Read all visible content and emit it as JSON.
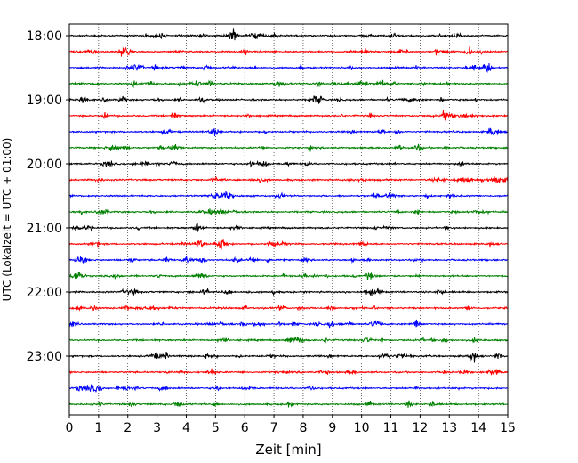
{
  "chart_data": {
    "type": "line",
    "title": "",
    "xlabel": "Zeit  [min]",
    "ylabel": "UTC (Lokalzeit = UTC + 01:00)",
    "xlim": [
      0,
      15
    ],
    "x_ticks": [
      "0",
      "1",
      "2",
      "3",
      "4",
      "5",
      "6",
      "7",
      "8",
      "9",
      "10",
      "11",
      "12",
      "13",
      "14",
      "15"
    ],
    "y_tick_labels": [
      "18:00",
      "19:00",
      "20:00",
      "21:00",
      "22:00",
      "23:00"
    ],
    "grid": "vertical dotted at each minute",
    "trace_interval_minutes": 15,
    "traces_start": "18:00",
    "traces_end": "23:45",
    "trace_count": 24,
    "trace_colors": [
      "#000000",
      "#ff0000",
      "#0000ff",
      "#008000"
    ],
    "description_rows": [
      "18:00",
      "18:15",
      "18:30",
      "18:45",
      "19:00",
      "19:15",
      "19:30",
      "19:45",
      "20:00",
      "20:15",
      "20:30",
      "20:45",
      "21:00",
      "21:15",
      "21:30",
      "21:45",
      "22:00",
      "22:15",
      "22:30",
      "22:45",
      "23:00",
      "23:15",
      "23:30",
      "23:45"
    ]
  }
}
